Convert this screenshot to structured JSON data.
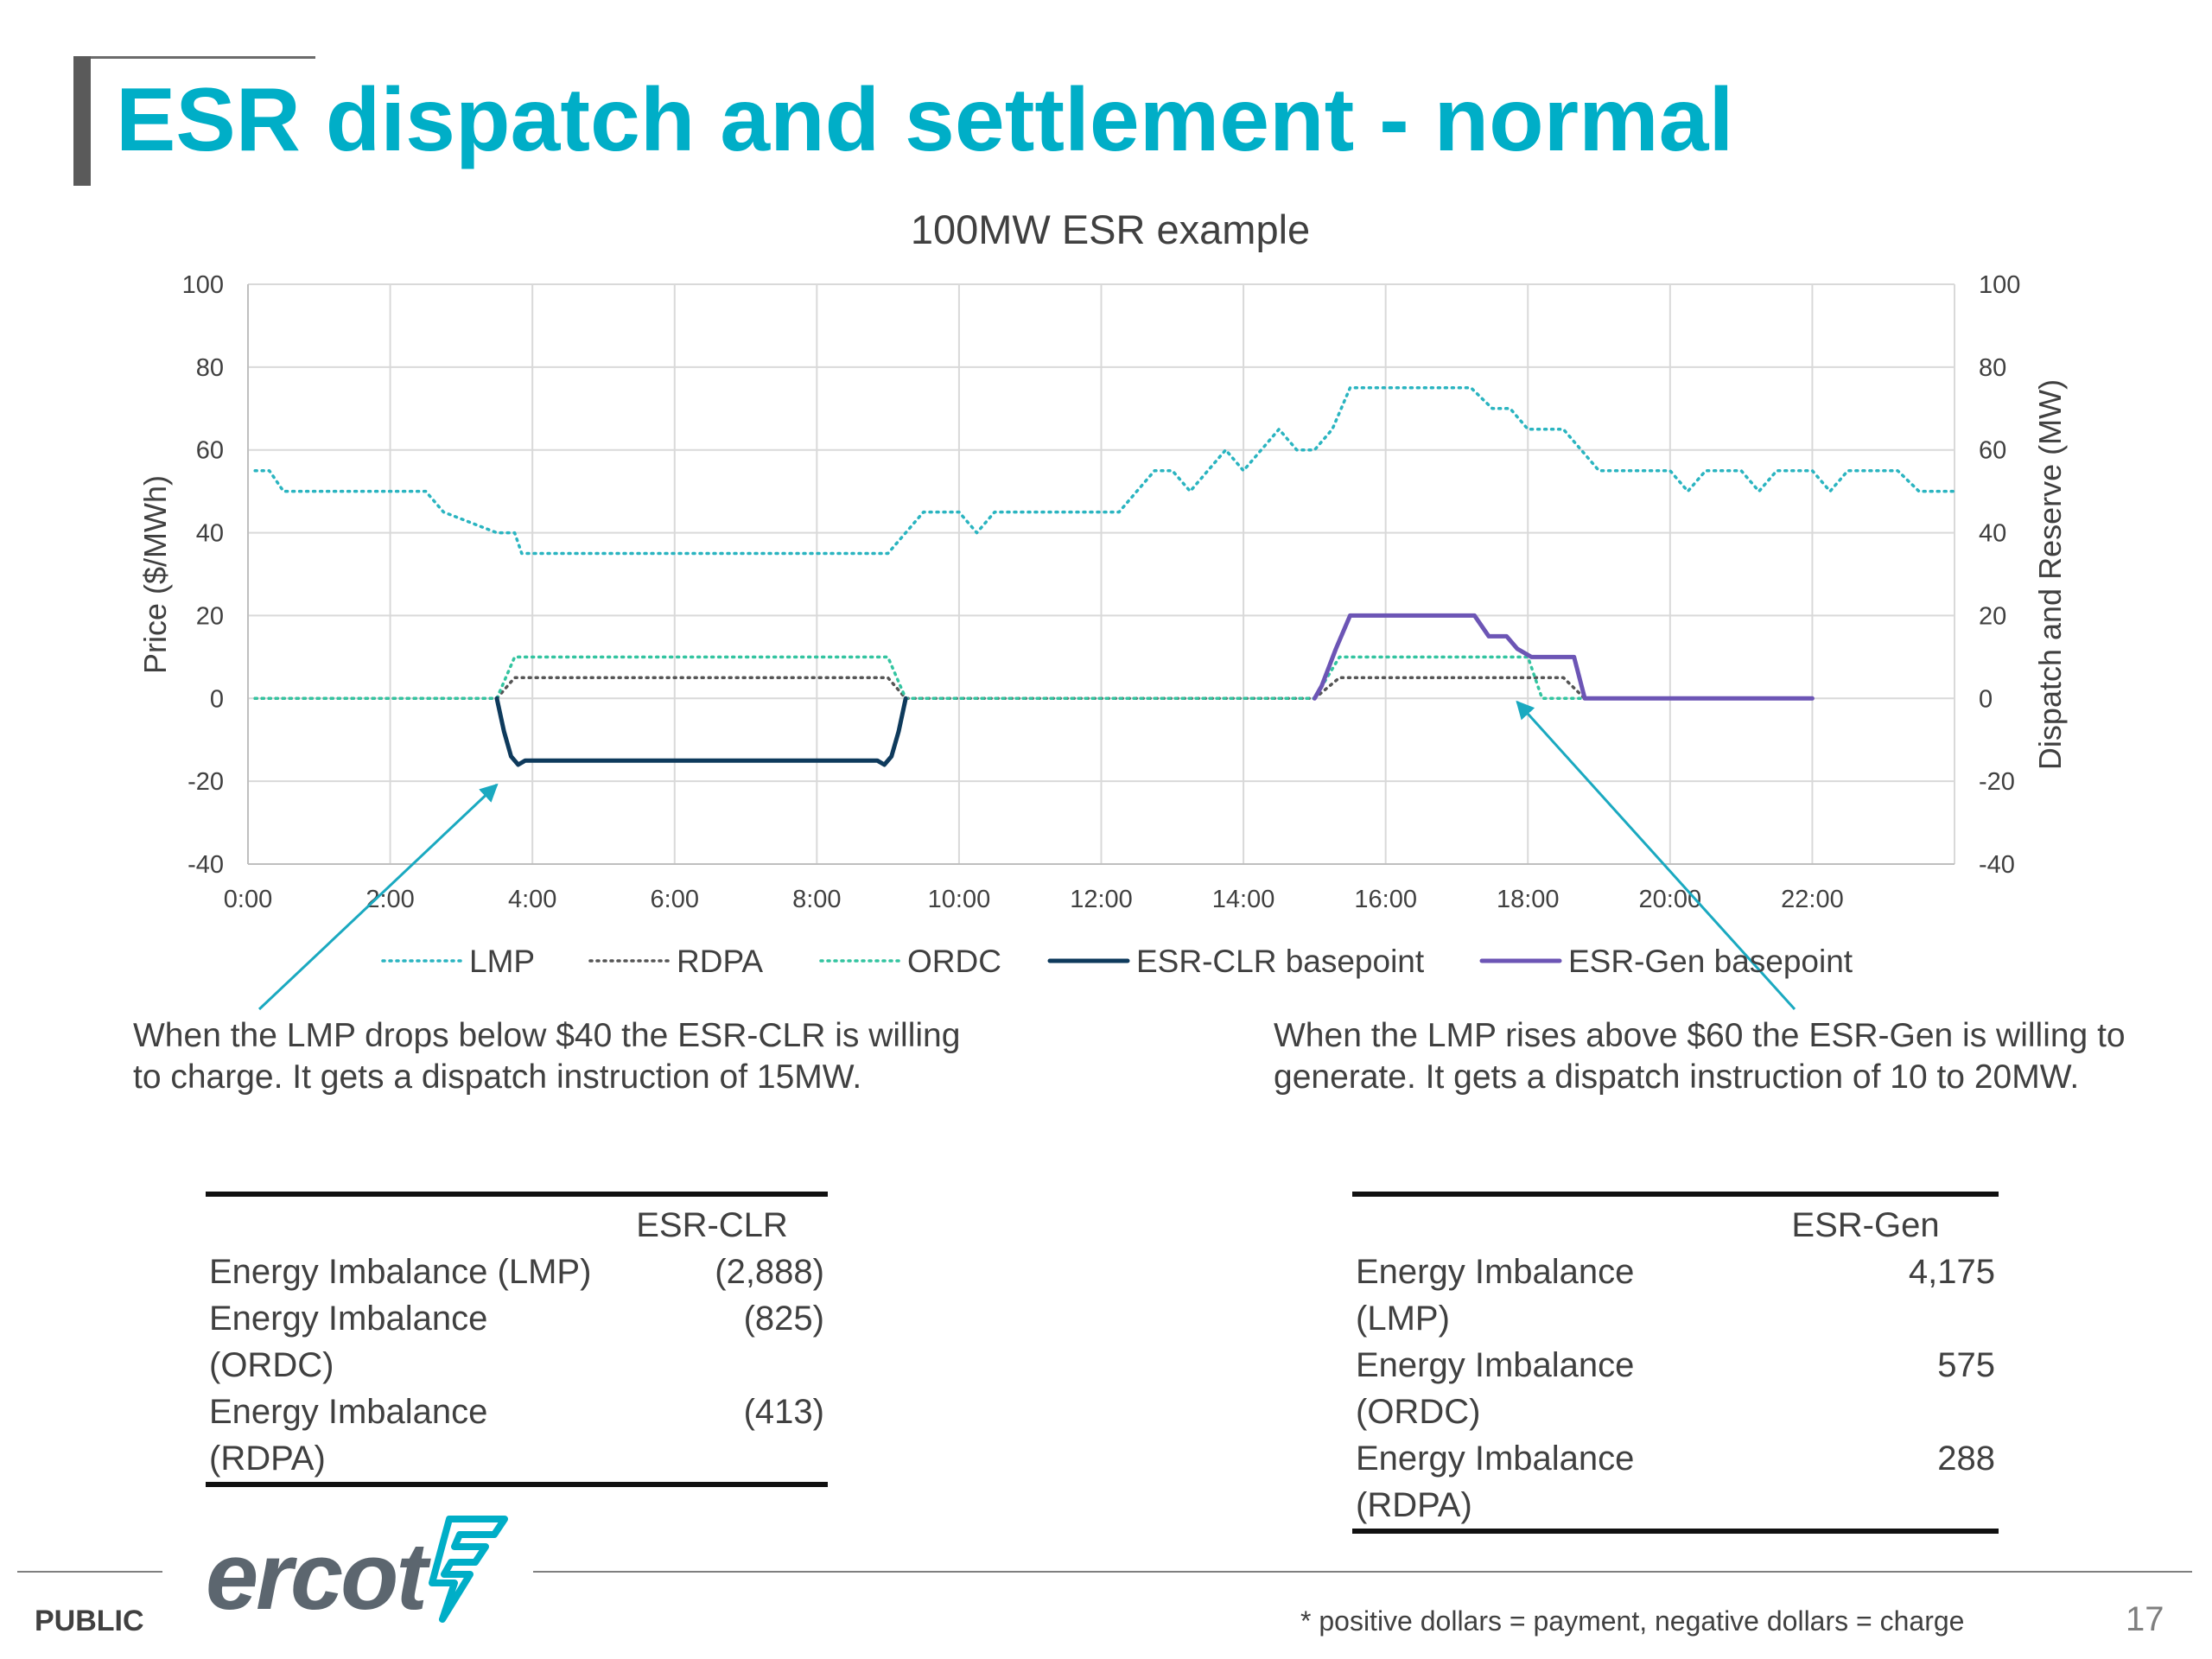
{
  "slide": {
    "title": "ESR dispatch and settlement - normal",
    "page_number": "17",
    "classification": "PUBLIC",
    "footnote": "* positive dollars = payment, negative dollars = charge",
    "logo_text": "ercot",
    "logo_icon": "ercot-bolt-icon",
    "accent_color": "#00aec7"
  },
  "notes": {
    "left": "When the LMP drops below $40 the ESR-CLR is willing to charge. It gets a dispatch instruction of 15MW.",
    "right": "When the LMP rises above $60 the ESR-Gen is willing to generate. It gets a dispatch instruction of 10 to 20MW."
  },
  "tables": {
    "clr": {
      "header": "ESR-CLR",
      "rows": [
        {
          "label": "Energy Imbalance (LMP)",
          "value": "(2,888)"
        },
        {
          "label": "Energy Imbalance (ORDC)",
          "value": "(825)"
        },
        {
          "label": "Energy Imbalance (RDPA)",
          "value": "(413)"
        }
      ]
    },
    "gen": {
      "header": "ESR-Gen",
      "rows": [
        {
          "label": "Energy Imbalance (LMP)",
          "value": "4,175"
        },
        {
          "label": "Energy Imbalance (ORDC)",
          "value": "575"
        },
        {
          "label": "Energy Imbalance (RDPA)",
          "value": "288"
        }
      ]
    }
  },
  "chart_data": {
    "type": "line",
    "title": "100MW ESR example",
    "ylabel": "Price ($/MWh)",
    "y2label": "Dispatch and Reserve (MW)",
    "ylim": [
      -40,
      100
    ],
    "y2lim": [
      -40,
      100
    ],
    "yticks": [
      100,
      80,
      60,
      40,
      20,
      0,
      -20,
      -40
    ],
    "xlim": [
      0,
      24
    ],
    "xticks": [
      0,
      2,
      4,
      6,
      8,
      10,
      12,
      14,
      16,
      18,
      20,
      22
    ],
    "xtick_labels": [
      "0:00",
      "2:00",
      "4:00",
      "6:00",
      "8:00",
      "10:00",
      "12:00",
      "14:00",
      "16:00",
      "18:00",
      "20:00",
      "22:00"
    ],
    "grid": true,
    "legend_position": "bottom",
    "series": [
      {
        "name": "LMP",
        "color": "#2ab4c0",
        "style": "dotted",
        "x": [
          0.1,
          0.3,
          0.5,
          2.25,
          2.5,
          2.75,
          3.5,
          3.75,
          3.85,
          9,
          9.5,
          10,
          10.25,
          10.5,
          12.25,
          12.75,
          13,
          13.25,
          13.75,
          14,
          14.25,
          14.5,
          14.75,
          15,
          15.25,
          15.5,
          15.65,
          17.2,
          17.5,
          17.75,
          18,
          18.5,
          19,
          19.5,
          20,
          20.25,
          20.5,
          21,
          21.25,
          21.5,
          22,
          22.25,
          22.5,
          23.2,
          23.5,
          24
        ],
        "y": [
          55,
          55,
          50,
          50,
          50,
          45,
          40,
          40,
          35,
          35,
          45,
          45,
          40,
          45,
          45,
          55,
          55,
          50,
          60,
          55,
          60,
          65,
          60,
          60,
          65,
          75,
          75,
          75,
          70,
          70,
          65,
          65,
          55,
          55,
          55,
          50,
          55,
          55,
          50,
          55,
          55,
          50,
          55,
          55,
          50,
          50
        ]
      },
      {
        "name": "RDPA",
        "color": "#555555",
        "style": "dotted",
        "x": [
          0.1,
          3.5,
          3.75,
          9,
          9.25,
          15,
          15.35,
          18.5,
          18.8,
          22
        ],
        "y": [
          0,
          0,
          5,
          5,
          0,
          0,
          5,
          5,
          0,
          0
        ]
      },
      {
        "name": "ORDC",
        "color": "#33c4a0",
        "style": "dotted",
        "x": [
          0.1,
          3.5,
          3.75,
          9,
          9.25,
          15,
          15.35,
          18,
          18.2,
          22
        ],
        "y": [
          0,
          0,
          10,
          10,
          0,
          0,
          10,
          10,
          0,
          0
        ]
      },
      {
        "name": "ESR-CLR basepoint",
        "color": "#0e3a5c",
        "style": "solid",
        "x": [
          3.5,
          3.6,
          3.7,
          3.8,
          3.9,
          4,
          8.85,
          8.95,
          9.05,
          9.15,
          9.25
        ],
        "y": [
          0,
          -8,
          -14,
          -16,
          -15,
          -15,
          -15,
          -16,
          -14,
          -8,
          0
        ]
      },
      {
        "name": "ESR-Gen basepoint",
        "color": "#6c55b5",
        "style": "solid",
        "x": [
          15,
          15.1,
          15.3,
          15.5,
          15.65,
          17.1,
          17.25,
          17.45,
          17.7,
          17.85,
          18.05,
          18.25,
          18.65,
          18.8,
          19,
          22
        ],
        "y": [
          0,
          3,
          12,
          20,
          20,
          20,
          20,
          15,
          15,
          12,
          10,
          10,
          10,
          0,
          0,
          0
        ]
      }
    ],
    "annotations": [
      {
        "target_series": "ESR-CLR basepoint",
        "arrow_to": [
          3.5,
          -20
        ]
      },
      {
        "target_series": "ESR-Gen basepoint",
        "arrow_to": [
          17.8,
          0
        ]
      }
    ]
  }
}
